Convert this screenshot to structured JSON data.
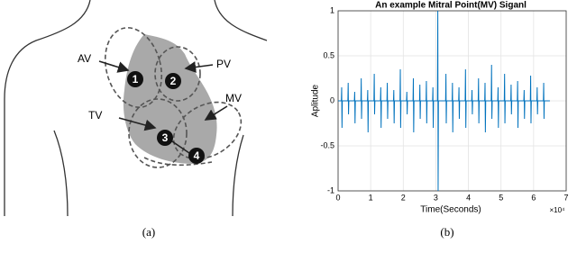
{
  "captions": {
    "a": "(a)",
    "b": "(b)"
  },
  "diagram": {
    "valves": [
      {
        "name": "AV",
        "number": "1"
      },
      {
        "name": "PV",
        "number": "2"
      },
      {
        "name": "TV",
        "number": "3"
      },
      {
        "name": "MV",
        "number": "4"
      }
    ]
  },
  "chart_data": {
    "type": "line",
    "title": "An example Mitral Point(MV) Siganl",
    "xlabel": "Time(Seconds)",
    "ylabel": "Aplitude",
    "x_multiplier": "×10⁴",
    "color": "#0072bd",
    "grid": true,
    "xlim": [
      0,
      7
    ],
    "xticks": [
      0,
      1,
      2,
      3,
      4,
      5,
      6,
      7
    ],
    "ylim": [
      -1,
      1
    ],
    "yticks": [
      -1,
      -0.5,
      0,
      0.5,
      1
    ],
    "x": [
      0,
      0.1,
      0.11,
      0.12,
      0.13,
      0.3,
      0.31,
      0.32,
      0.33,
      0.5,
      0.51,
      0.52,
      0.53,
      0.7,
      0.71,
      0.72,
      0.73,
      0.9,
      0.91,
      0.92,
      0.93,
      1.1,
      1.11,
      1.12,
      1.13,
      1.3,
      1.31,
      1.32,
      1.33,
      1.5,
      1.51,
      1.52,
      1.53,
      1.7,
      1.71,
      1.72,
      1.73,
      1.9,
      1.91,
      1.92,
      1.93,
      2.1,
      2.11,
      2.12,
      2.13,
      2.3,
      2.31,
      2.32,
      2.33,
      2.5,
      2.51,
      2.52,
      2.53,
      2.7,
      2.71,
      2.72,
      2.73,
      2.9,
      2.91,
      2.92,
      2.93,
      3.05,
      3.06,
      3.07,
      3.08,
      3.3,
      3.31,
      3.32,
      3.33,
      3.5,
      3.51,
      3.52,
      3.53,
      3.7,
      3.71,
      3.72,
      3.73,
      3.9,
      3.91,
      3.92,
      3.93,
      4.1,
      4.11,
      4.12,
      4.13,
      4.3,
      4.31,
      4.32,
      4.33,
      4.5,
      4.51,
      4.52,
      4.53,
      4.7,
      4.71,
      4.72,
      4.73,
      4.9,
      4.91,
      4.92,
      4.93,
      5.1,
      5.11,
      5.12,
      5.13,
      5.3,
      5.31,
      5.32,
      5.33,
      5.5,
      5.51,
      5.52,
      5.53,
      5.7,
      5.71,
      5.72,
      5.73,
      5.9,
      5.91,
      5.92,
      5.93,
      6.1,
      6.11,
      6.12,
      6.13,
      6.3,
      6.31,
      6.32,
      6.33,
      6.5
    ],
    "values": [
      0,
      0,
      0.15,
      -0.3,
      0,
      0,
      0.2,
      -0.15,
      0,
      0,
      0.1,
      -0.25,
      0,
      0,
      0.25,
      -0.2,
      0,
      0,
      0.12,
      -0.35,
      0,
      0,
      0.3,
      -0.15,
      0,
      0,
      0.15,
      -0.3,
      0,
      0,
      0.2,
      -0.2,
      0,
      0,
      0.12,
      -0.25,
      0,
      0,
      0.35,
      -0.3,
      0,
      0,
      0.1,
      -0.15,
      0,
      0,
      0.25,
      -0.35,
      0,
      0,
      0.18,
      -0.2,
      0,
      0,
      0.22,
      -0.25,
      0,
      0,
      0.15,
      -0.3,
      0,
      0,
      1,
      -1,
      0,
      0,
      0.3,
      -0.25,
      0,
      0,
      0.2,
      -0.35,
      0,
      0,
      0.15,
      -0.2,
      0,
      0,
      0.35,
      -0.3,
      0,
      0,
      0.12,
      -0.15,
      0,
      0,
      0.25,
      -0.25,
      0,
      0,
      0.2,
      -0.35,
      0,
      0,
      0.4,
      -0.2,
      0,
      0,
      0.15,
      -0.3,
      0,
      0,
      0.3,
      -0.25,
      0,
      0,
      0.18,
      -0.15,
      0,
      0,
      0.22,
      -0.3,
      0,
      0,
      0.12,
      -0.2,
      0,
      0,
      0.28,
      -0.25,
      0,
      0,
      0.15,
      -0.15,
      0,
      0,
      0.2,
      -0.2,
      0,
      0
    ]
  }
}
